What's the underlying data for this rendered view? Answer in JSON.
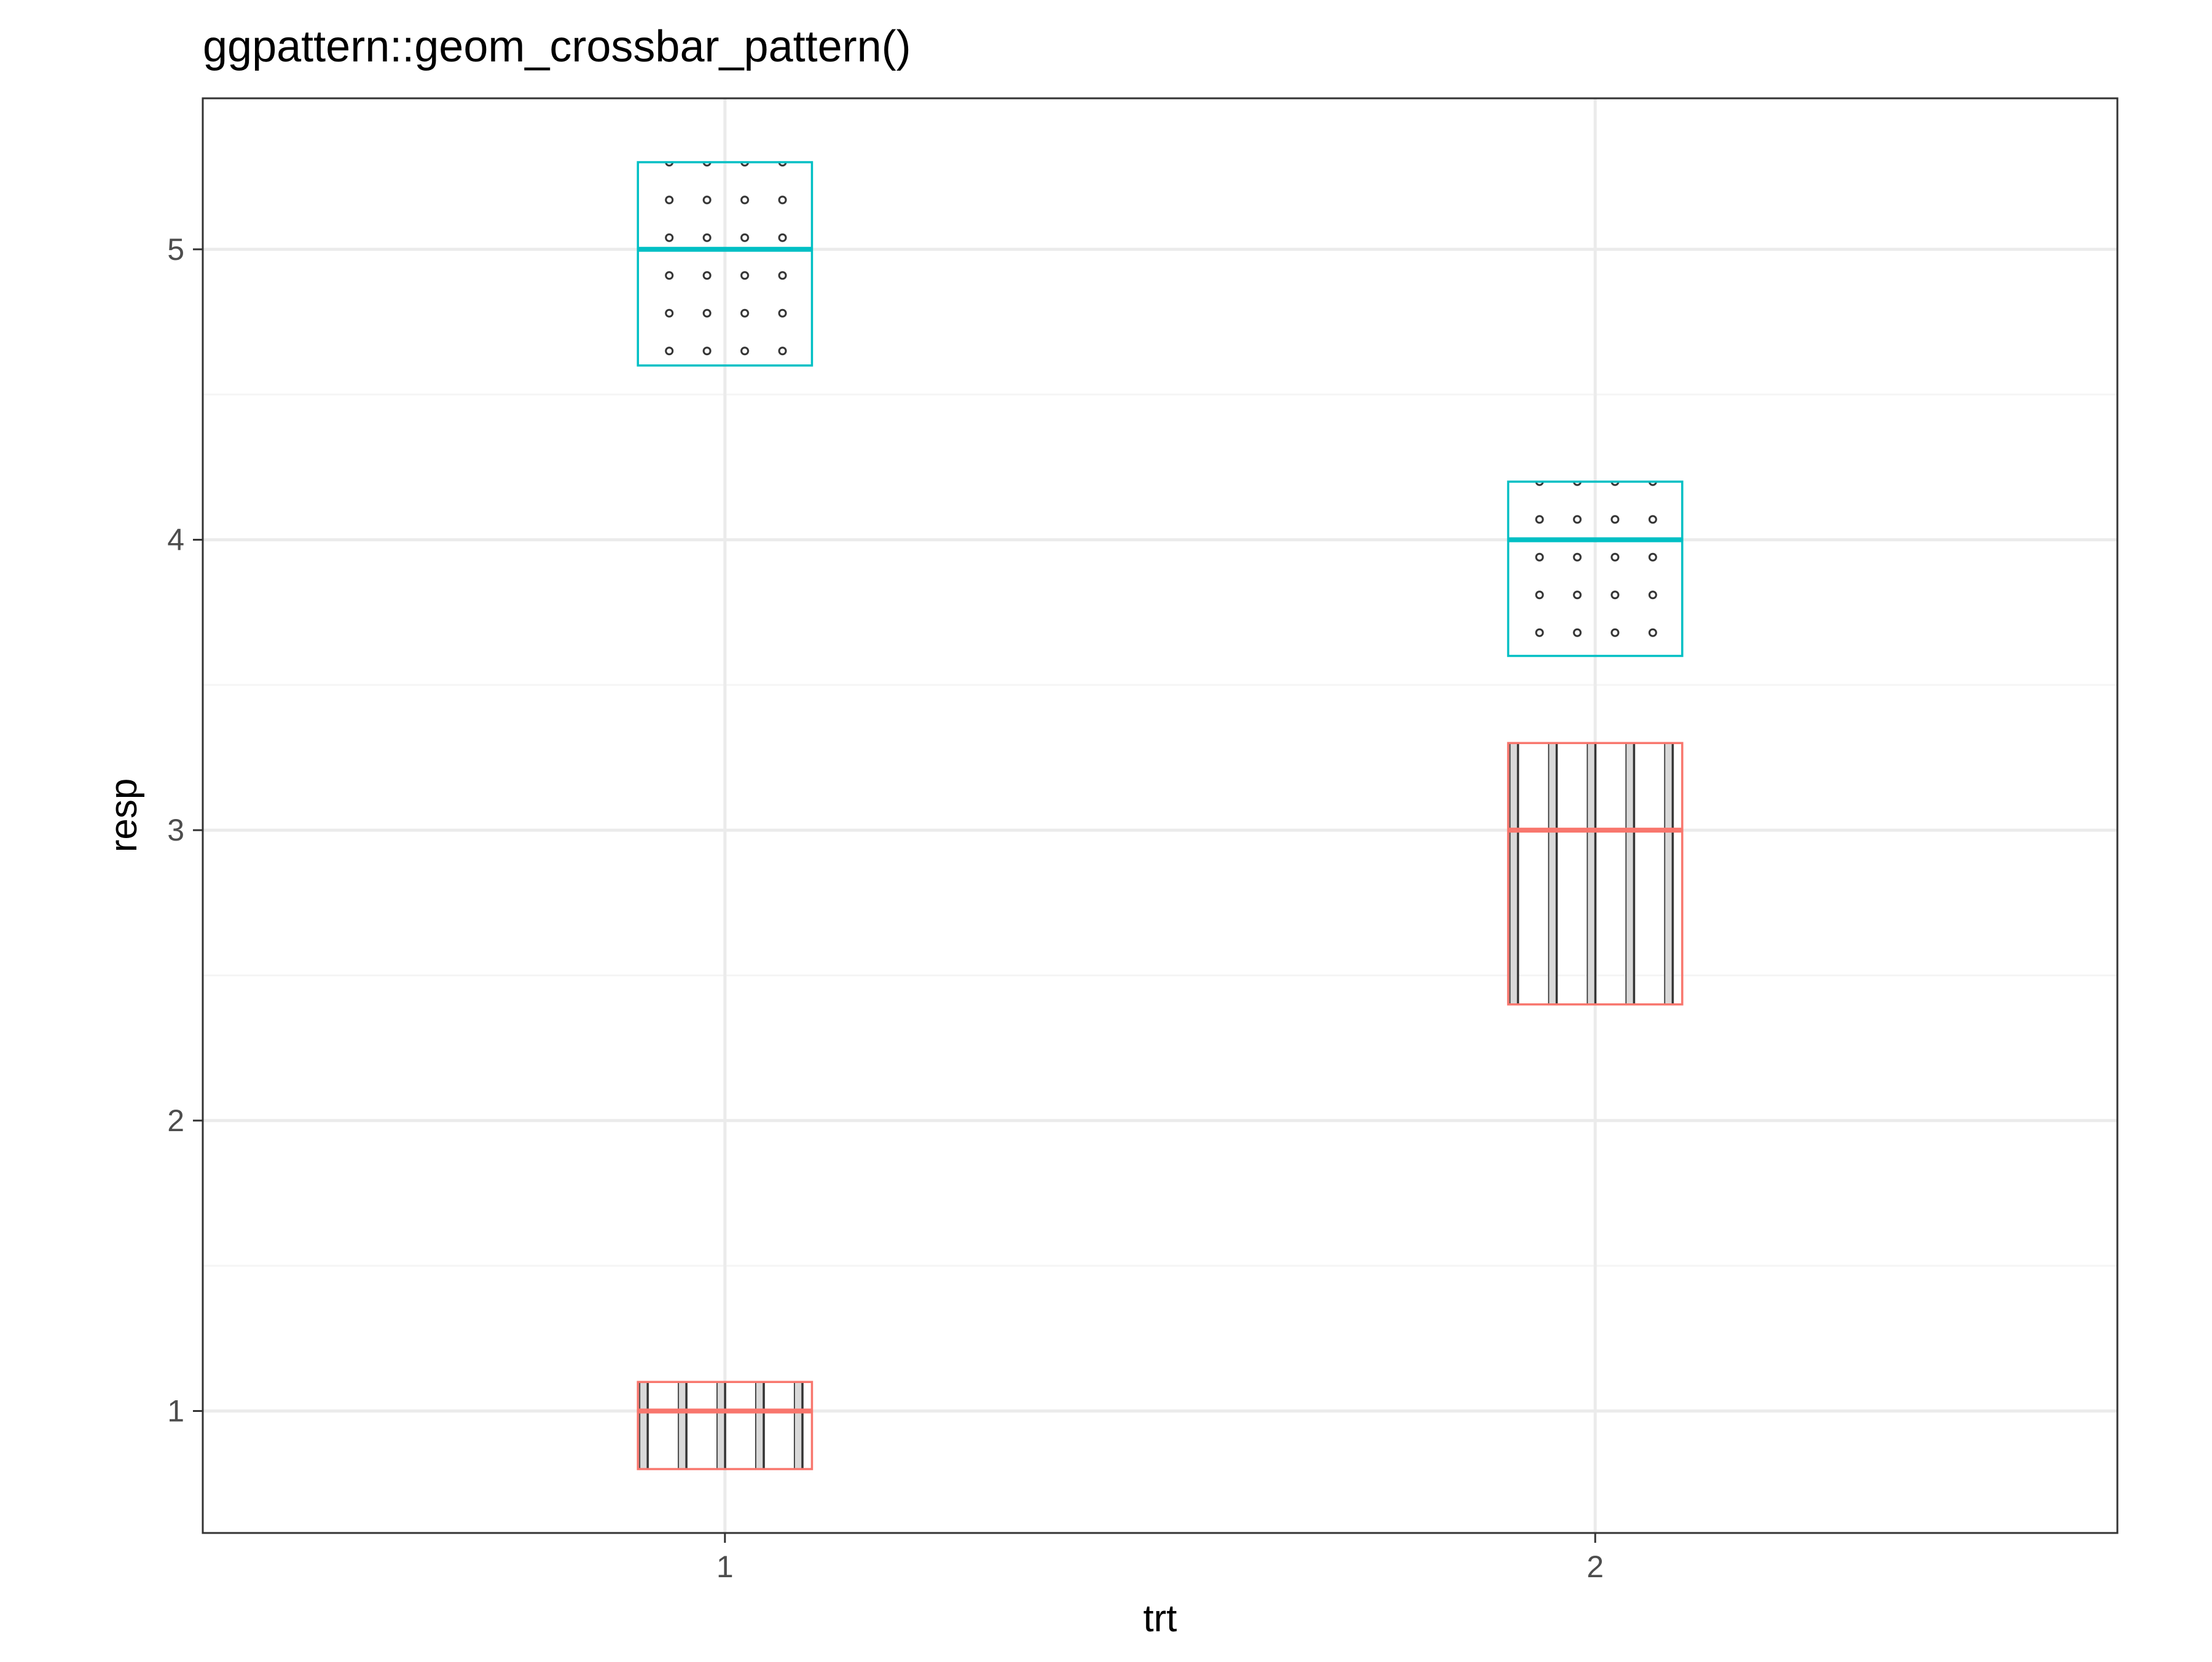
{
  "chart_data": {
    "type": "crossbar",
    "title": "ggpattern::geom_crossbar_pattern()",
    "xlabel": "trt",
    "ylabel": "resp",
    "x_categories": [
      "1",
      "2"
    ],
    "x_tick_labels": [
      "1",
      "2"
    ],
    "y_ticks": [
      1,
      2,
      3,
      4,
      5
    ],
    "y_tick_labels": [
      "1",
      "2",
      "3",
      "4",
      "5"
    ],
    "ylim": [
      0.58,
      5.52
    ],
    "xlim": [
      0.4,
      2.6
    ],
    "grid": true,
    "legend": "none",
    "crossbar_width": 0.2,
    "series": [
      {
        "group": "1",
        "color": "#F8766D",
        "pattern": "stripe",
        "points": [
          {
            "x": "1",
            "y": 1.0,
            "ymin": 0.8,
            "ymax": 1.1
          },
          {
            "x": "2",
            "y": 3.0,
            "ymin": 2.4,
            "ymax": 3.3
          }
        ]
      },
      {
        "group": "2",
        "color": "#00BFC4",
        "pattern": "circle",
        "points": [
          {
            "x": "1",
            "y": 5.0,
            "ymin": 4.6,
            "ymax": 5.3
          },
          {
            "x": "2",
            "y": 4.0,
            "ymin": 3.6,
            "ymax": 4.2
          }
        ]
      }
    ],
    "colors": {
      "panel_border": "#333333",
      "grid_major": "#ebebeb",
      "grid_minor": "#f5f5f5",
      "tick_mark": "#333333",
      "pattern_line": "#333333",
      "stripe_fill": "#d9d9d9"
    }
  }
}
